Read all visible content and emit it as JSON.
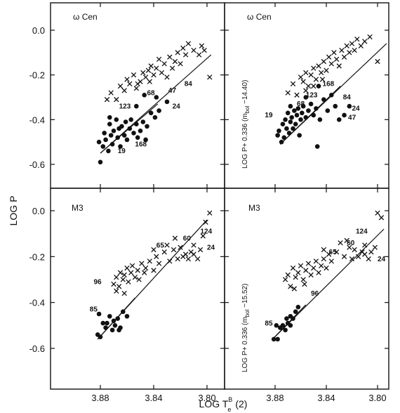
{
  "chart_data": {
    "type": "scatter",
    "xlabel": "LOG T",
    "xlabel_sup": "B",
    "xlabel_sub": "e",
    "xlabel_suffix": "(2)",
    "ylabel_left": "LOG P",
    "x_ticks": [
      "3.88",
      "3.84",
      "3.80"
    ],
    "xlim": [
      3.906,
      3.778
    ],
    "y_ticks": [
      "0.0",
      "-0.2",
      "-0.4",
      "-0.6"
    ],
    "ylim": [
      -0.68,
      0.06
    ],
    "panels": [
      {
        "label": "ω Cen",
        "ylabel": "",
        "lines": [
          [
            3.88,
            -0.55,
            3.797,
            -0.11
          ],
          [
            3.88,
            -0.55,
            3.837,
            -0.33
          ]
        ],
        "crosses": [
          [
            3.875,
            -0.31
          ],
          [
            3.872,
            -0.28
          ],
          [
            3.868,
            -0.31
          ],
          [
            3.865,
            -0.25
          ],
          [
            3.862,
            -0.27
          ],
          [
            3.86,
            -0.22
          ],
          [
            3.858,
            -0.24
          ],
          [
            3.855,
            -0.2
          ],
          [
            3.853,
            -0.26
          ],
          [
            3.85,
            -0.23
          ],
          [
            3.848,
            -0.19
          ],
          [
            3.846,
            -0.21
          ],
          [
            3.844,
            -0.18
          ],
          [
            3.842,
            -0.16
          ],
          [
            3.84,
            -0.2
          ],
          [
            3.838,
            -0.17
          ],
          [
            3.836,
            -0.13
          ],
          [
            3.834,
            -0.19
          ],
          [
            3.832,
            -0.15
          ],
          [
            3.83,
            -0.21
          ],
          [
            3.828,
            -0.12
          ],
          [
            3.826,
            -0.17
          ],
          [
            3.824,
            -0.14
          ],
          [
            3.822,
            -0.1
          ],
          [
            3.82,
            -0.15
          ],
          [
            3.818,
            -0.08
          ],
          [
            3.816,
            -0.11
          ],
          [
            3.814,
            -0.06
          ],
          [
            3.81,
            -0.09
          ],
          [
            3.806,
            -0.11
          ],
          [
            3.804,
            -0.07
          ],
          [
            3.802,
            -0.09
          ],
          [
            3.798,
            -0.21
          ],
          [
            3.852,
            -0.24
          ],
          [
            3.843,
            -0.23
          ]
        ],
        "dots": [
          [
            3.881,
            -0.5
          ],
          [
            3.88,
            -0.59
          ],
          [
            3.878,
            -0.52
          ],
          [
            3.877,
            -0.46
          ],
          [
            3.876,
            -0.49
          ],
          [
            3.874,
            -0.54
          ],
          [
            3.873,
            -0.42
          ],
          [
            3.872,
            -0.47
          ],
          [
            3.871,
            -0.51
          ],
          [
            3.87,
            -0.45
          ],
          [
            3.868,
            -0.4
          ],
          [
            3.867,
            -0.48
          ],
          [
            3.866,
            -0.44
          ],
          [
            3.865,
            -0.52
          ],
          [
            3.864,
            -0.43
          ],
          [
            3.862,
            -0.47
          ],
          [
            3.861,
            -0.41
          ],
          [
            3.86,
            -0.49
          ],
          [
            3.858,
            -0.44
          ],
          [
            3.857,
            -0.4
          ],
          [
            3.855,
            -0.46
          ],
          [
            3.853,
            -0.42
          ],
          [
            3.852,
            -0.48
          ],
          [
            3.85,
            -0.45
          ],
          [
            3.848,
            -0.41
          ],
          [
            3.845,
            -0.43
          ],
          [
            3.842,
            -0.37
          ],
          [
            3.839,
            -0.39
          ],
          [
            3.836,
            -0.36
          ],
          [
            3.853,
            -0.34
          ],
          [
            3.847,
            -0.29
          ],
          [
            3.846,
            -0.49
          ],
          [
            3.873,
            -0.39
          ],
          [
            3.83,
            -0.32
          ],
          [
            3.838,
            -0.3
          ]
        ],
        "labels": [
          {
            "text": "123",
            "x": 3.866,
            "y": -0.35
          },
          {
            "text": "68",
            "x": 3.845,
            "y": -0.29
          },
          {
            "text": "47",
            "x": 3.829,
            "y": -0.28
          },
          {
            "text": "84",
            "x": 3.817,
            "y": -0.25
          },
          {
            "text": "24",
            "x": 3.826,
            "y": -0.35
          },
          {
            "text": "19",
            "x": 3.867,
            "y": -0.55
          },
          {
            "text": "168",
            "x": 3.854,
            "y": -0.52
          }
        ]
      },
      {
        "label": "ω Cen",
        "ylabel": "LOG P+ 0.336 (m",
        "ylabel_sub": "bol",
        "ylabel_suffix": " −14.40)",
        "lines": [
          [
            3.876,
            -0.51,
            3.793,
            -0.06
          ],
          [
            3.876,
            -0.51,
            3.829,
            -0.25
          ]
        ],
        "crosses": [
          [
            3.87,
            -0.28
          ],
          [
            3.866,
            -0.24
          ],
          [
            3.863,
            -0.29
          ],
          [
            3.86,
            -0.21
          ],
          [
            3.858,
            -0.23
          ],
          [
            3.856,
            -0.19
          ],
          [
            3.854,
            -0.25
          ],
          [
            3.852,
            -0.2
          ],
          [
            3.85,
            -0.17
          ],
          [
            3.848,
            -0.22
          ],
          [
            3.846,
            -0.16
          ],
          [
            3.844,
            -0.19
          ],
          [
            3.842,
            -0.14
          ],
          [
            3.84,
            -0.18
          ],
          [
            3.838,
            -0.12
          ],
          [
            3.836,
            -0.15
          ],
          [
            3.834,
            -0.1
          ],
          [
            3.832,
            -0.13
          ],
          [
            3.83,
            -0.16
          ],
          [
            3.828,
            -0.09
          ],
          [
            3.826,
            -0.12
          ],
          [
            3.824,
            -0.07
          ],
          [
            3.822,
            -0.1
          ],
          [
            3.82,
            -0.06
          ],
          [
            3.818,
            -0.09
          ],
          [
            3.816,
            -0.04
          ],
          [
            3.813,
            -0.07
          ],
          [
            3.81,
            -0.05
          ],
          [
            3.806,
            -0.03
          ],
          [
            3.8,
            -0.14
          ],
          [
            3.85,
            -0.25
          ],
          [
            3.843,
            -0.22
          ],
          [
            3.856,
            -0.27
          ]
        ],
        "dots": [
          [
            3.878,
            -0.47
          ],
          [
            3.877,
            -0.45
          ],
          [
            3.875,
            -0.5
          ],
          [
            3.874,
            -0.42
          ],
          [
            3.873,
            -0.48
          ],
          [
            3.872,
            -0.4
          ],
          [
            3.871,
            -0.44
          ],
          [
            3.87,
            -0.37
          ],
          [
            3.869,
            -0.46
          ],
          [
            3.868,
            -0.41
          ],
          [
            3.867,
            -0.39
          ],
          [
            3.866,
            -0.44
          ],
          [
            3.865,
            -0.36
          ],
          [
            3.864,
            -0.42
          ],
          [
            3.863,
            -0.38
          ],
          [
            3.862,
            -0.35
          ],
          [
            3.861,
            -0.47
          ],
          [
            3.86,
            -0.4
          ],
          [
            3.859,
            -0.37
          ],
          [
            3.858,
            -0.34
          ],
          [
            3.856,
            -0.39
          ],
          [
            3.854,
            -0.36
          ],
          [
            3.852,
            -0.33
          ],
          [
            3.85,
            -0.38
          ],
          [
            3.848,
            -0.35
          ],
          [
            3.845,
            -0.4
          ],
          [
            3.842,
            -0.31
          ],
          [
            3.839,
            -0.36
          ],
          [
            3.836,
            -0.29
          ],
          [
            3.833,
            -0.34
          ],
          [
            3.83,
            -0.4
          ],
          [
            3.826,
            -0.38
          ],
          [
            3.822,
            -0.34
          ],
          [
            3.856,
            -0.3
          ],
          [
            3.846,
            -0.25
          ],
          [
            3.847,
            -0.52
          ],
          [
            3.868,
            -0.34
          ]
        ],
        "labels": [
          {
            "text": "123",
            "x": 3.856,
            "y": -0.3
          },
          {
            "text": "168",
            "x": 3.843,
            "y": -0.25
          },
          {
            "text": "68",
            "x": 3.863,
            "y": -0.34
          },
          {
            "text": "84",
            "x": 3.827,
            "y": -0.31
          },
          {
            "text": "24",
            "x": 3.82,
            "y": -0.36
          },
          {
            "text": "19",
            "x": 3.888,
            "y": -0.39
          },
          {
            "text": "47",
            "x": 3.823,
            "y": -0.4
          }
        ]
      },
      {
        "label": "M3",
        "ylabel": "",
        "lines": [
          [
            3.882,
            -0.56,
            3.8,
            -0.04
          ],
          [
            3.882,
            -0.56,
            3.854,
            -0.38
          ]
        ],
        "crosses": [
          [
            3.87,
            -0.32
          ],
          [
            3.868,
            -0.29
          ],
          [
            3.866,
            -0.33
          ],
          [
            3.865,
            -0.27
          ],
          [
            3.863,
            -0.3
          ],
          [
            3.862,
            -0.28
          ],
          [
            3.86,
            -0.25
          ],
          [
            3.859,
            -0.31
          ],
          [
            3.857,
            -0.27
          ],
          [
            3.856,
            -0.24
          ],
          [
            3.854,
            -0.29
          ],
          [
            3.852,
            -0.26
          ],
          [
            3.851,
            -0.3
          ],
          [
            3.849,
            -0.23
          ],
          [
            3.847,
            -0.27
          ],
          [
            3.846,
            -0.25
          ],
          [
            3.843,
            -0.22
          ],
          [
            3.84,
            -0.26
          ],
          [
            3.838,
            -0.2
          ],
          [
            3.836,
            -0.23
          ],
          [
            3.832,
            -0.18
          ],
          [
            3.83,
            -0.15
          ],
          [
            3.828,
            -0.22
          ],
          [
            3.825,
            -0.17
          ],
          [
            3.822,
            -0.21
          ],
          [
            3.82,
            -0.16
          ],
          [
            3.818,
            -0.2
          ],
          [
            3.816,
            -0.19
          ],
          [
            3.814,
            -0.21
          ],
          [
            3.812,
            -0.18
          ],
          [
            3.81,
            -0.15
          ],
          [
            3.807,
            -0.21
          ],
          [
            3.805,
            -0.17
          ],
          [
            3.803,
            -0.11
          ],
          [
            3.801,
            -0.05
          ],
          [
            3.798,
            -0.01
          ],
          [
            3.81,
            -0.19
          ],
          [
            3.84,
            -0.17
          ],
          [
            3.824,
            -0.12
          ],
          [
            3.868,
            -0.35
          ],
          [
            3.862,
            -0.36
          ]
        ],
        "dots": [
          [
            3.882,
            -0.54
          ],
          [
            3.88,
            -0.55
          ],
          [
            3.878,
            -0.49
          ],
          [
            3.876,
            -0.51
          ],
          [
            3.875,
            -0.49
          ],
          [
            3.873,
            -0.46
          ],
          [
            3.871,
            -0.52
          ],
          [
            3.87,
            -0.48
          ],
          [
            3.869,
            -0.5
          ],
          [
            3.867,
            -0.47
          ],
          [
            3.865,
            -0.51
          ],
          [
            3.863,
            -0.44
          ],
          [
            3.86,
            -0.46
          ],
          [
            3.866,
            -0.52
          ],
          [
            3.881,
            -0.45
          ]
        ],
        "labels": [
          {
            "text": "96",
            "x": 3.885,
            "y": -0.32
          },
          {
            "text": "85",
            "x": 3.888,
            "y": -0.44
          },
          {
            "text": "65",
            "x": 3.838,
            "y": -0.16
          },
          {
            "text": "60",
            "x": 3.818,
            "y": -0.13
          },
          {
            "text": "124",
            "x": 3.805,
            "y": -0.1
          },
          {
            "text": "24",
            "x": 3.8,
            "y": -0.17
          }
        ]
      },
      {
        "label": "M3",
        "ylabel": "LOG P+ 0.336 (m",
        "ylabel_sub": "bol",
        "ylabel_suffix": " −15.52)",
        "lines": [
          [
            3.882,
            -0.56,
            3.795,
            -0.08
          ],
          [
            3.882,
            -0.56,
            3.856,
            -0.41
          ]
        ],
        "crosses": [
          [
            3.872,
            -0.3
          ],
          [
            3.87,
            -0.28
          ],
          [
            3.868,
            -0.33
          ],
          [
            3.866,
            -0.25
          ],
          [
            3.864,
            -0.29
          ],
          [
            3.862,
            -0.27
          ],
          [
            3.86,
            -0.24
          ],
          [
            3.858,
            -0.3
          ],
          [
            3.856,
            -0.26
          ],
          [
            3.854,
            -0.23
          ],
          [
            3.852,
            -0.28
          ],
          [
            3.85,
            -0.25
          ],
          [
            3.848,
            -0.22
          ],
          [
            3.846,
            -0.27
          ],
          [
            3.844,
            -0.24
          ],
          [
            3.842,
            -0.21
          ],
          [
            3.84,
            -0.25
          ],
          [
            3.838,
            -0.19
          ],
          [
            3.836,
            -0.22
          ],
          [
            3.832,
            -0.18
          ],
          [
            3.829,
            -0.14
          ],
          [
            3.826,
            -0.2
          ],
          [
            3.822,
            -0.16
          ],
          [
            3.82,
            -0.21
          ],
          [
            3.818,
            -0.17
          ],
          [
            3.815,
            -0.2
          ],
          [
            3.812,
            -0.18
          ],
          [
            3.81,
            -0.15
          ],
          [
            3.807,
            -0.21
          ],
          [
            3.805,
            -0.18
          ],
          [
            3.802,
            -0.16
          ],
          [
            3.8,
            -0.01
          ],
          [
            3.797,
            -0.03
          ],
          [
            3.81,
            -0.19
          ],
          [
            3.842,
            -0.17
          ],
          [
            3.824,
            -0.13
          ],
          [
            3.865,
            -0.34
          ],
          [
            3.857,
            -0.32
          ]
        ],
        "dots": [
          [
            3.881,
            -0.56
          ],
          [
            3.879,
            -0.5
          ],
          [
            3.878,
            -0.56
          ],
          [
            3.876,
            -0.51
          ],
          [
            3.874,
            -0.5
          ],
          [
            3.871,
            -0.47
          ],
          [
            3.87,
            -0.49
          ],
          [
            3.868,
            -0.46
          ],
          [
            3.866,
            -0.47
          ],
          [
            3.864,
            -0.44
          ],
          [
            3.862,
            -0.42
          ],
          [
            3.868,
            -0.5
          ],
          [
            3.872,
            -0.52
          ]
        ],
        "labels": [
          {
            "text": "96",
            "x": 3.852,
            "y": -0.37
          },
          {
            "text": "85",
            "x": 3.888,
            "y": -0.5
          },
          {
            "text": "65",
            "x": 3.838,
            "y": -0.19
          },
          {
            "text": "60",
            "x": 3.824,
            "y": -0.15
          },
          {
            "text": "124",
            "x": 3.817,
            "y": -0.1
          },
          {
            "text": "24",
            "x": 3.8,
            "y": -0.22
          }
        ]
      }
    ]
  }
}
